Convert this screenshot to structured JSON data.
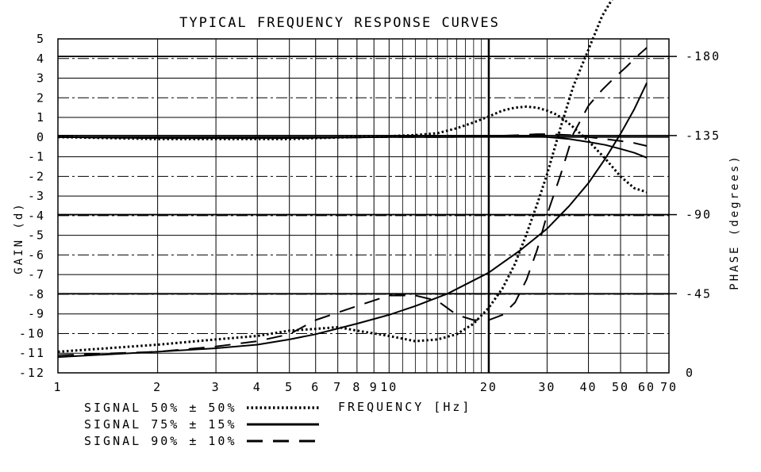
{
  "chart_data": {
    "type": "line",
    "title": "TYPICAL FREQUENCY RESPONSE CURVES",
    "xlabel": "FREQUENCY [Hz]",
    "ylabel": "GAIN (d)",
    "y2label": "PHASE (degrees)",
    "xscale": "log",
    "xlim": [
      1,
      70
    ],
    "ylim": [
      -12,
      5
    ],
    "y2lim": [
      0,
      190
    ],
    "x_ticks": [
      1,
      2,
      3,
      4,
      5,
      6,
      7,
      8,
      9,
      10,
      20,
      30,
      40,
      50,
      60,
      70
    ],
    "x_tick_labels": [
      "1",
      "2",
      "3",
      "4",
      "5",
      "6",
      "7",
      "8",
      "9",
      "10",
      "20",
      "30",
      "40",
      "50",
      "60",
      "70"
    ],
    "y_ticks": [
      5,
      4,
      3,
      2,
      1,
      0,
      -1,
      -2,
      -3,
      -4,
      -5,
      -6,
      -7,
      -8,
      -9,
      -10,
      -11,
      -12
    ],
    "y_tick_labels": [
      "5",
      "4",
      "3",
      "2",
      "1",
      "0",
      "-1",
      "-2",
      "-3",
      "-4",
      "-5",
      "-6",
      "-7",
      "-8",
      "-9",
      "-10",
      "-11",
      "-12"
    ],
    "y2_ticks": [
      180,
      135,
      90,
      45,
      0
    ],
    "y2_tick_labels": [
      "-180",
      "-135",
      "-90",
      "-45",
      "0"
    ],
    "grid": true,
    "legend": "bottom-left",
    "series": [
      {
        "name": "SIGNAL 50% ± 50%",
        "style": "dotted",
        "axis": "gain",
        "x": [
          1,
          2,
          3,
          4,
          5,
          6,
          8,
          10,
          12,
          14,
          16,
          18,
          20,
          22,
          24,
          26,
          28,
          30,
          32,
          34,
          36,
          40,
          45,
          50,
          55,
          60
        ],
        "y": [
          0,
          -0.1,
          -0.1,
          -0.1,
          -0.1,
          -0.05,
          0,
          0.05,
          0.1,
          0.2,
          0.45,
          0.75,
          1.05,
          1.35,
          1.5,
          1.55,
          1.5,
          1.35,
          1.15,
          0.85,
          0.5,
          -0.2,
          -1.1,
          -2.0,
          -2.6,
          -2.8
        ]
      },
      {
        "name": "SIGNAL 75% ± 15%",
        "style": "solid",
        "axis": "gain",
        "x": [
          1,
          2,
          5,
          10,
          15,
          20,
          25,
          30,
          35,
          40,
          45,
          50,
          55,
          60
        ],
        "y": [
          0,
          -0.05,
          -0.05,
          0,
          0,
          0.05,
          0.05,
          0,
          -0.1,
          -0.25,
          -0.4,
          -0.6,
          -0.8,
          -1.05
        ]
      },
      {
        "name": "SIGNAL 90% ± 10%",
        "style": "dashed",
        "axis": "gain",
        "x": [
          1,
          2,
          5,
          10,
          15,
          20,
          25,
          28,
          30,
          35,
          40,
          45,
          50,
          55,
          60
        ],
        "y": [
          0,
          -0.05,
          -0.05,
          0,
          0,
          0.05,
          0.1,
          0.15,
          0.15,
          0.1,
          0,
          -0.1,
          -0.2,
          -0.3,
          -0.45
        ]
      },
      {
        "name": "SIGNAL 50% ± 50%",
        "style": "dotted",
        "axis": "phase",
        "x": [
          1,
          2,
          3,
          4,
          5,
          6,
          7,
          8,
          10,
          12,
          14,
          16,
          18,
          20,
          22,
          24,
          26,
          28,
          30,
          33,
          36,
          40,
          44,
          48,
          52,
          56,
          60
        ],
        "y": [
          12,
          16,
          19,
          21,
          24,
          25,
          26,
          24,
          21,
          18,
          19,
          22,
          28,
          37,
          48,
          62,
          79,
          96,
          113,
          140,
          163,
          184,
          203,
          215,
          219,
          218,
          213
        ]
      },
      {
        "name": "SIGNAL 75% ± 15%",
        "style": "solid",
        "axis": "phase",
        "x": [
          1,
          2,
          3,
          4,
          5,
          6,
          8,
          10,
          12,
          15,
          20,
          25,
          30,
          35,
          40,
          45,
          50,
          55,
          60
        ],
        "y": [
          9,
          12,
          14,
          16,
          19,
          22,
          28,
          33,
          38,
          45,
          57,
          70,
          82,
          95,
          108,
          122,
          136,
          150,
          165
        ]
      },
      {
        "name": "SIGNAL 90% ± 10%",
        "style": "dashed",
        "axis": "phase",
        "x": [
          1,
          2,
          3,
          4,
          5,
          6,
          8,
          10,
          12,
          14,
          16,
          18,
          20,
          22,
          24,
          26,
          28,
          30,
          33,
          36,
          40,
          44,
          48,
          52,
          56,
          60
        ],
        "y": [
          10,
          12,
          15,
          18,
          22,
          30,
          38,
          44,
          44,
          41,
          33,
          30,
          30,
          33,
          40,
          53,
          70,
          90,
          113,
          136,
          152,
          161,
          168,
          174,
          180,
          185
        ]
      }
    ]
  }
}
